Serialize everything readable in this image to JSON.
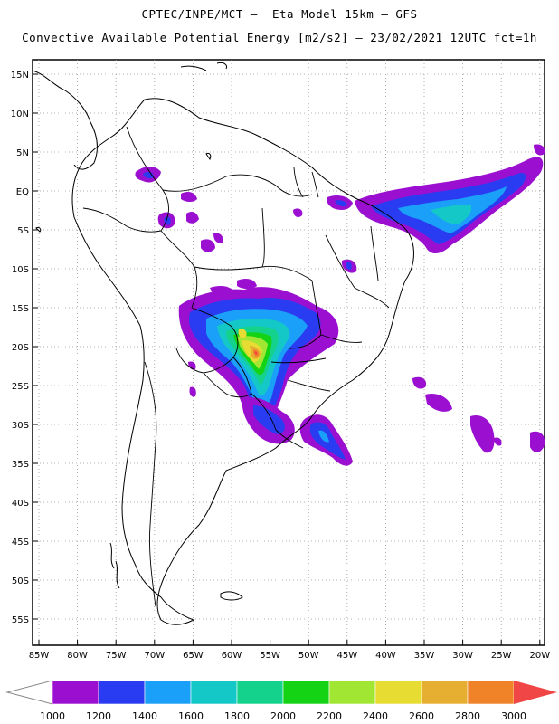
{
  "header": {
    "line1": "CPTEC/INPE/MCT —  Eta Model 15km — GFS",
    "line2": "Convective Available Potential Energy [m2/s2] — 23/02/2021 12UTC fct=1h"
  },
  "axes": {
    "lon_labels": [
      "85W",
      "80W",
      "75W",
      "70W",
      "65W",
      "60W",
      "55W",
      "50W",
      "45W",
      "40W",
      "35W",
      "30W",
      "25W",
      "20W"
    ],
    "lat_labels": [
      "15N",
      "10N",
      "5N",
      "EQ",
      "5S",
      "10S",
      "15S",
      "20S",
      "25S",
      "30S",
      "35S",
      "40S",
      "45S",
      "50S",
      "55S"
    ],
    "gridlines": "dotted"
  },
  "colorbar": {
    "labels": [
      "1000",
      "1200",
      "1400",
      "1600",
      "1800",
      "2000",
      "2200",
      "2400",
      "2600",
      "2800",
      "3000"
    ],
    "colors": [
      "#9b10d0",
      "#2a3cf2",
      "#1aa0f8",
      "#14c8c8",
      "#14d28c",
      "#14d214",
      "#a0e632",
      "#e6dc32",
      "#e6af32",
      "#f08228",
      "#f04646"
    ],
    "under_color": "#ffffff"
  }
}
